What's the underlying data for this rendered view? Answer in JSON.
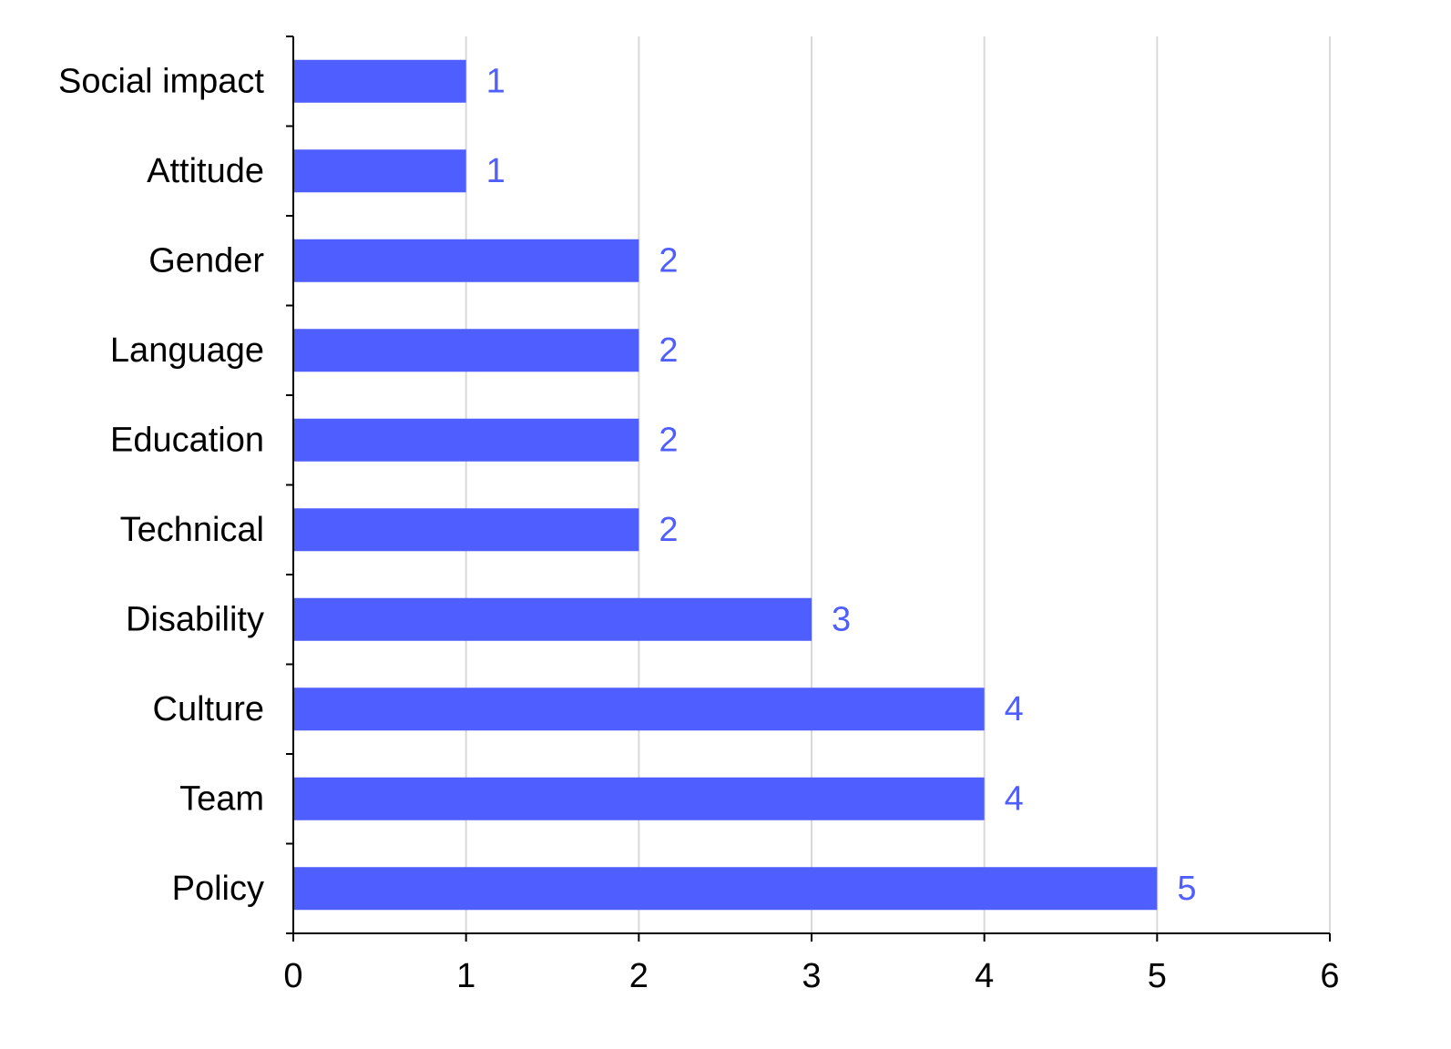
{
  "chart_data": {
    "type": "bar",
    "orientation": "horizontal",
    "categories": [
      "Social impact",
      "Attitude",
      "Gender",
      "Language",
      "Education",
      "Technical",
      "Disability",
      "Culture",
      "Team",
      "Policy"
    ],
    "values": [
      1,
      1,
      2,
      2,
      2,
      2,
      3,
      4,
      4,
      5
    ],
    "xlim": [
      0,
      6
    ],
    "x_ticks": [
      "0",
      "1",
      "2",
      "3",
      "4",
      "5",
      "6"
    ],
    "title": "",
    "xlabel": "",
    "ylabel": "",
    "grid": "vertical",
    "data_labels": true,
    "legend": "none"
  },
  "colors": {
    "bar": "#4f5fff",
    "data_label": "#4f5fff",
    "grid": "#d9d9d9",
    "axis": "#000000"
  }
}
